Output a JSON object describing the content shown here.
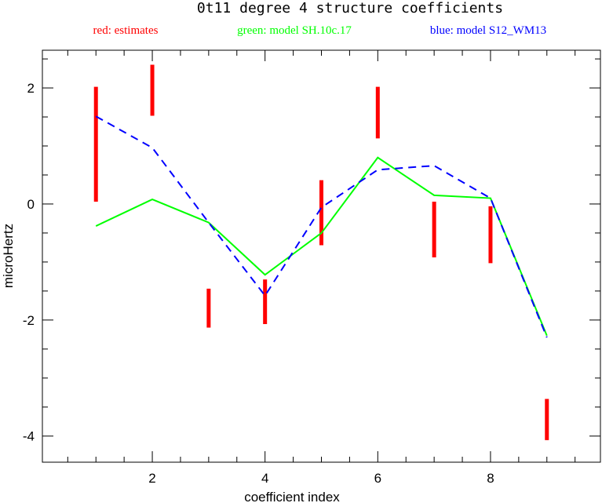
{
  "chart_data": {
    "type": "line",
    "title": "0t11 degree 4 structure coefficients",
    "xlabel": "coefficient index",
    "ylabel": "microHertz",
    "xlim": [
      0.05,
      9.95
    ],
    "ylim": [
      -4.45,
      2.65
    ],
    "x_ticks": [
      2,
      4,
      6,
      8
    ],
    "y_ticks": [
      -4,
      -2,
      0,
      2
    ],
    "x_ticks_minor_step": 0.5,
    "y_ticks_minor_step": 0.5,
    "grid": false,
    "legend_position": "top",
    "legend": [
      {
        "text": "red: estimates",
        "color": "#ff0000"
      },
      {
        "text": "green: model SH.10c.17",
        "color": "#00ff00"
      },
      {
        "text": "blue: model S12_WM13",
        "color": "#0000ff"
      }
    ],
    "series": [
      {
        "color": "#ff0000",
        "style": "error-bars",
        "x": [
          1,
          2,
          3,
          4,
          5,
          6,
          7,
          8,
          9
        ],
        "low": [
          0.04,
          1.52,
          -2.13,
          -2.07,
          -0.71,
          1.13,
          -0.92,
          -1.02,
          -4.07
        ],
        "high": [
          2.02,
          2.4,
          -1.46,
          -1.3,
          0.41,
          2.02,
          0.04,
          -0.04,
          -3.36
        ]
      },
      {
        "color": "#00ff00",
        "style": "solid",
        "x": [
          1,
          2,
          3,
          4,
          5,
          6,
          7,
          8,
          9
        ],
        "values": [
          -0.38,
          0.08,
          -0.32,
          -1.22,
          -0.5,
          0.8,
          0.15,
          0.1,
          -2.27
        ]
      },
      {
        "color": "#0000ff",
        "style": "dashed",
        "x": [
          1,
          2,
          3,
          4,
          5,
          6,
          7,
          8,
          9
        ],
        "values": [
          1.51,
          0.97,
          -0.32,
          -1.58,
          -0.06,
          0.59,
          0.66,
          0.1,
          -2.3
        ]
      }
    ]
  }
}
